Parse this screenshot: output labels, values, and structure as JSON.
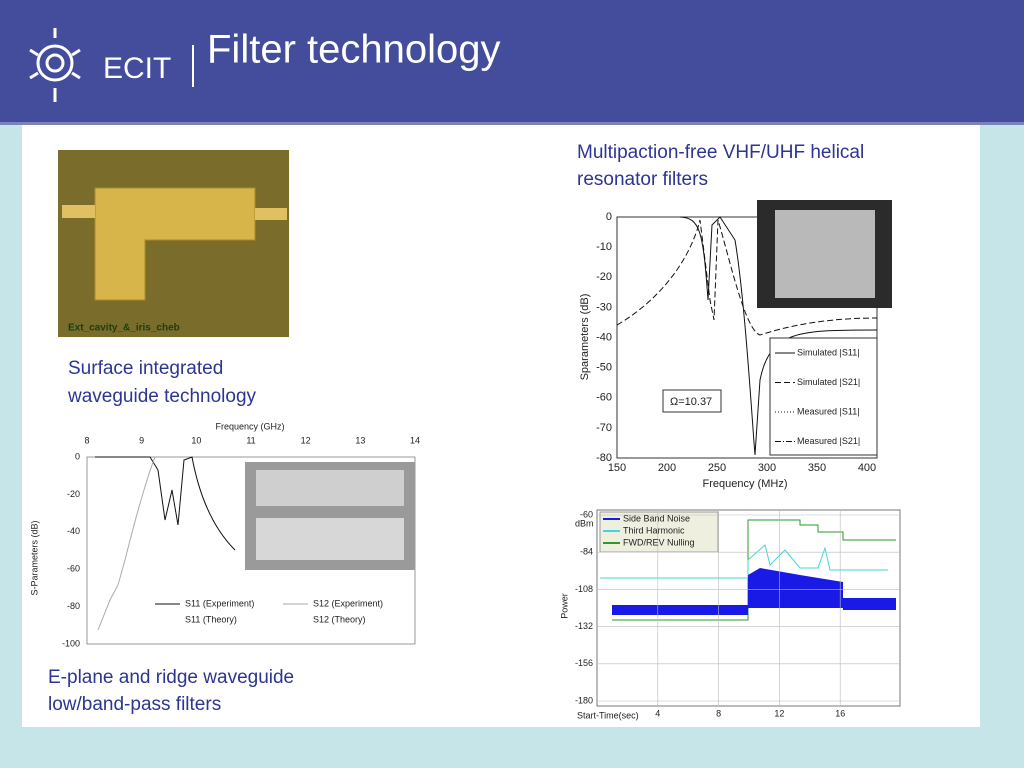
{
  "header": {
    "logo_text": "ECIT",
    "title": "Filter technology"
  },
  "siw": {
    "photo_label": "Ext_cavity_&_iris_cheb",
    "caption": [
      "Surface integrated",
      "waveguide technology"
    ]
  },
  "helical": {
    "caption": [
      "Multipaction-free VHF/UHF helical",
      "resonator filters"
    ],
    "ylabel": "Sparameters (dB)",
    "xlabel": "Frequency (MHz)",
    "yticks": [
      0,
      -10,
      -20,
      -30,
      -40,
      -50,
      -60,
      -70,
      -80
    ],
    "xticks": [
      150,
      200,
      250,
      300,
      350,
      400
    ],
    "annotation": "Ω=10.37",
    "legend": [
      "Simulated |S11|",
      "Simulated |S21|",
      "Measured |S11|",
      "Measured |S21|"
    ]
  },
  "eplane": {
    "caption": [
      "E-plane and ridge waveguide",
      "low/band-pass filters"
    ],
    "xlabel": "Frequency (GHz)",
    "ylabel": "S-Parameters (dB)",
    "xticks": [
      8,
      9,
      10,
      11,
      12,
      13,
      14
    ],
    "yticks": [
      0,
      -20,
      -40,
      -60,
      -80,
      -100
    ],
    "legend": [
      "S11 (Experiment)",
      "S12 (Experiment)",
      "S11 (Theory)",
      "S12 (Theory)"
    ]
  },
  "power": {
    "ylabel": "Power",
    "unit": "dBm",
    "xlabel": "Start-Time(sec)",
    "yticks": [
      -60,
      -84,
      -108,
      -132,
      -156,
      -180
    ],
    "xticks": [
      4,
      8,
      12,
      16
    ],
    "legend": [
      "Side Band Noise",
      "Third Harmonic",
      "FWD/REV Nulling"
    ]
  }
}
